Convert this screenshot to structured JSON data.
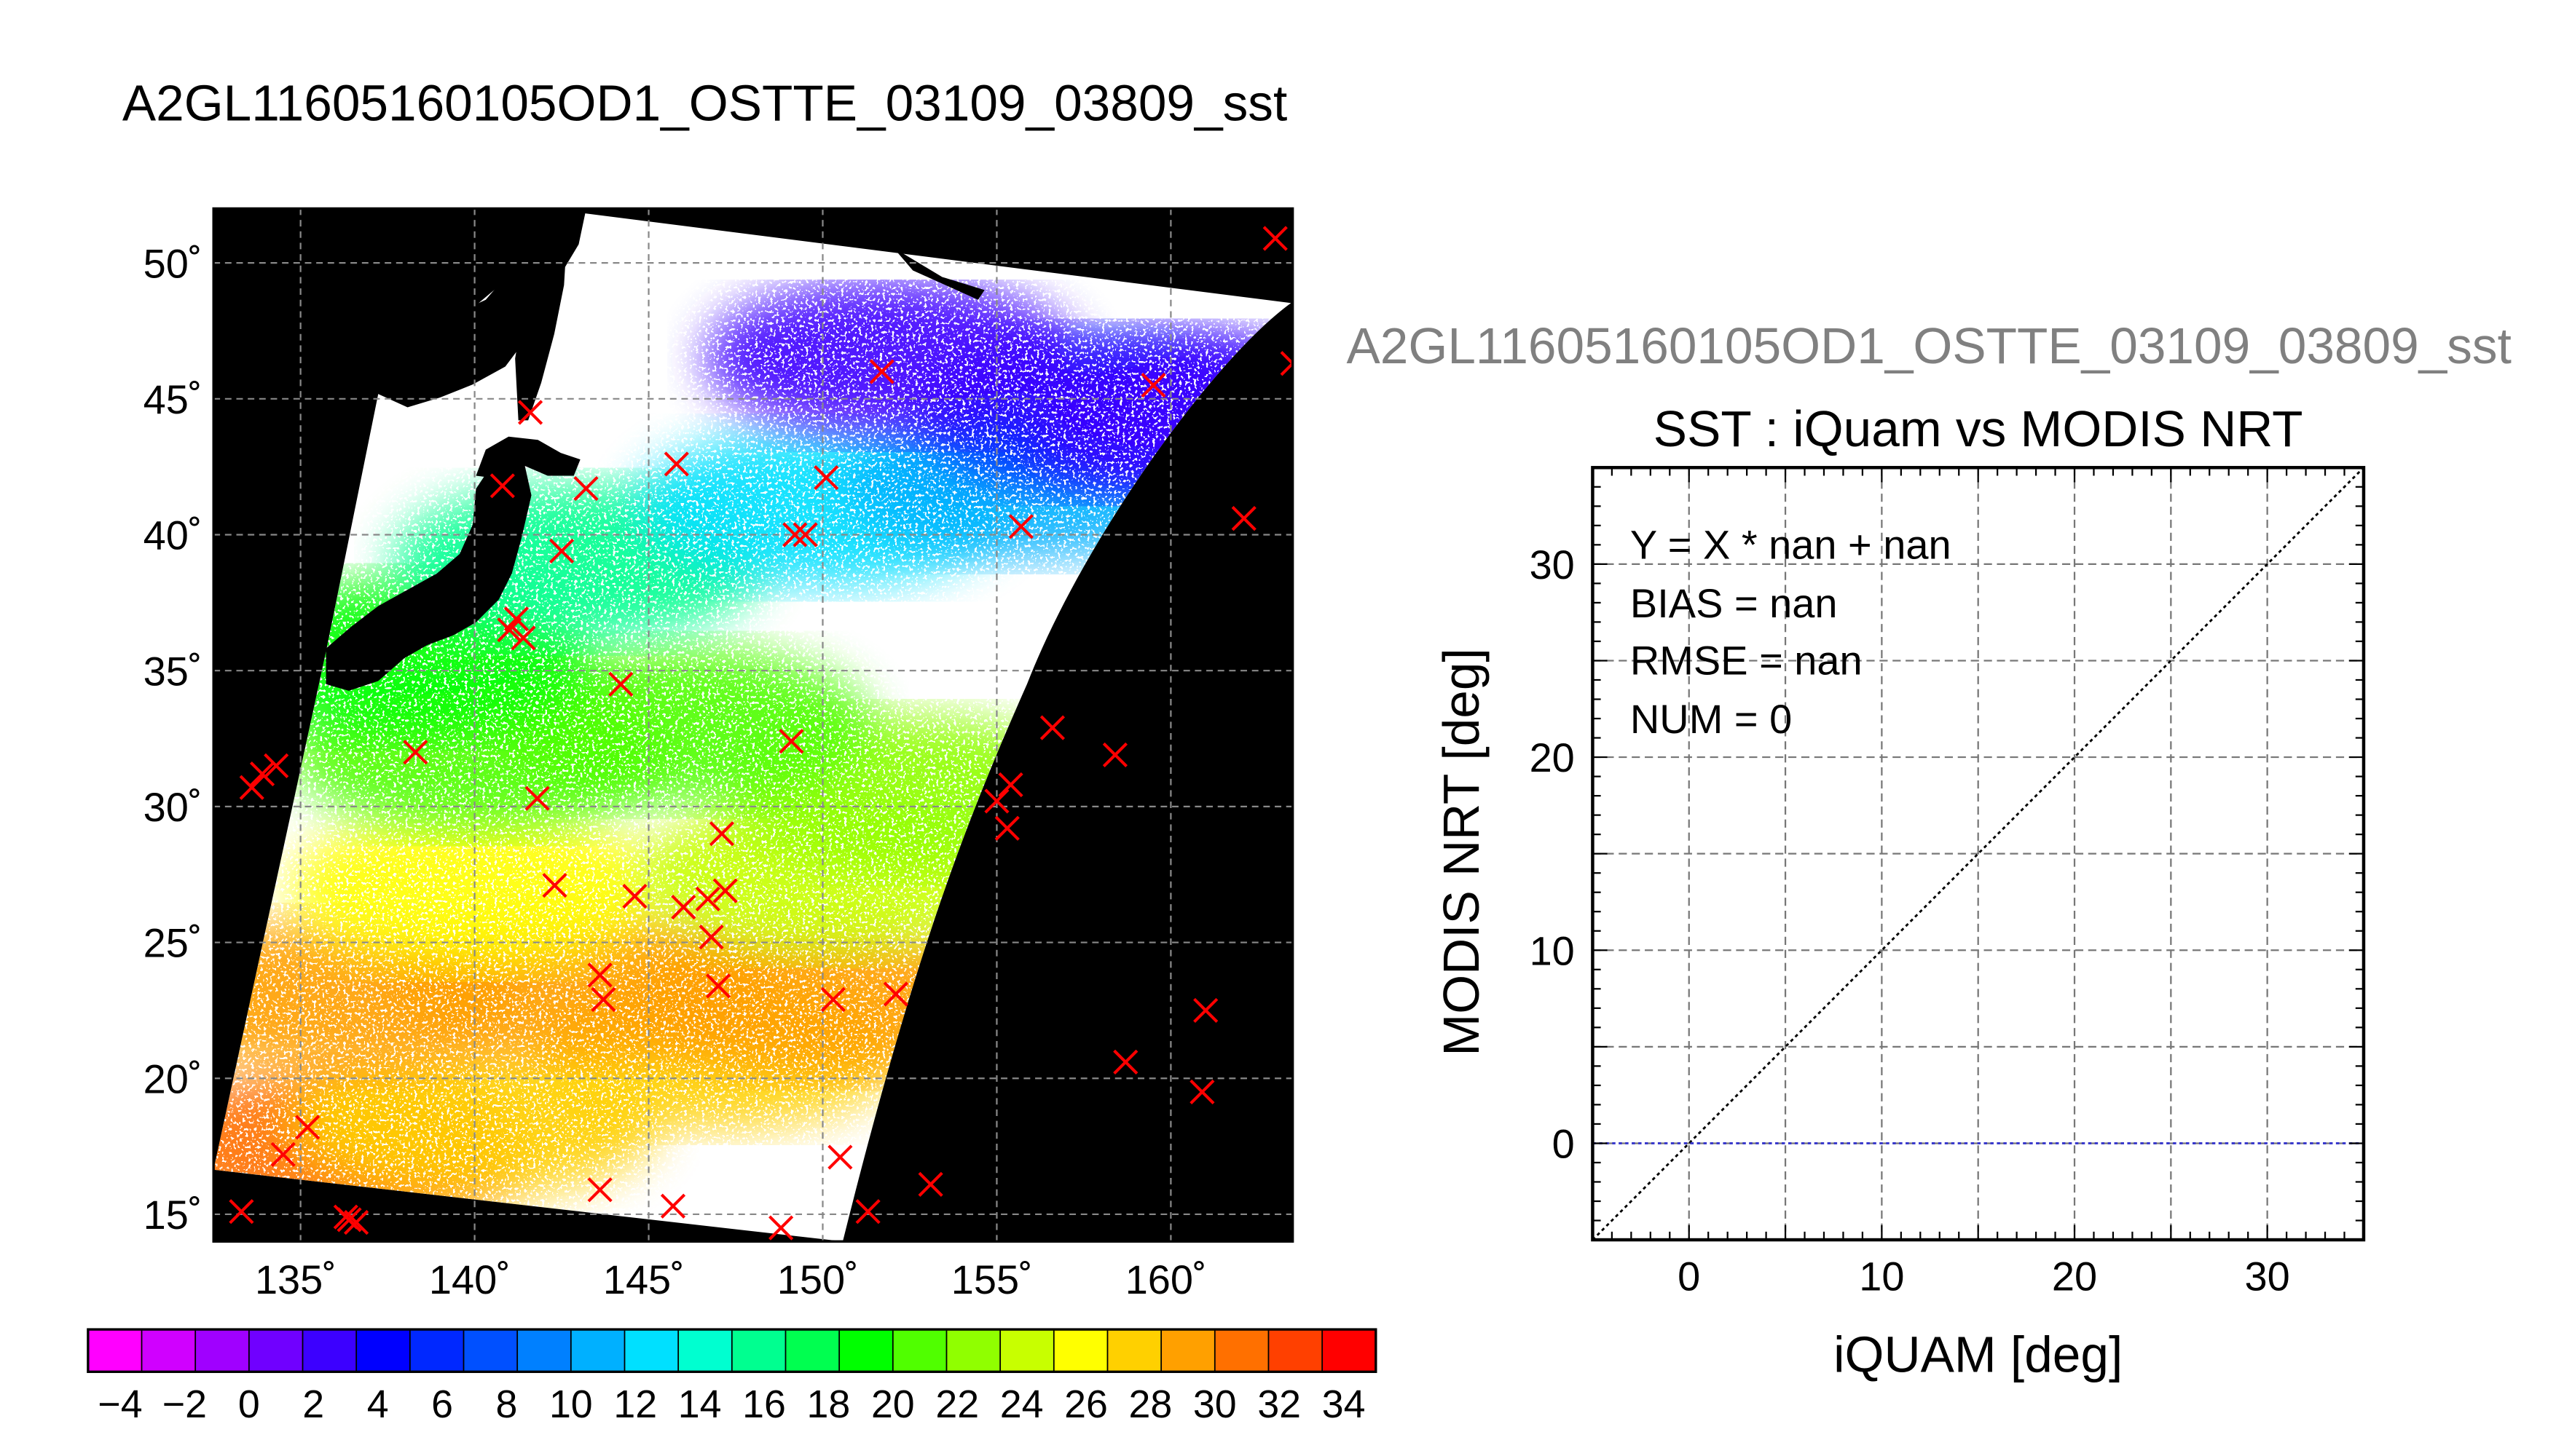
{
  "title": "A2GL11605160105OD1_OSTTE_03109_03809_sst",
  "scatter_title": "A2GL11605160105OD1_OSTTE_03109_03809_sst",
  "scatter_subtitle": "SST : iQuam vs MODIS NRT",
  "stats": {
    "fit": "Y = X * nan + nan",
    "bias": "BIAS = nan",
    "rmse": "RMSE = nan",
    "num": "NUM = 0"
  },
  "colors": {
    "marker": "#ff0000",
    "zero_line": "#3333cc",
    "land": "#000000",
    "ocean_no_data": "#ffffff"
  },
  "chart_data": [
    {
      "type": "heatmap",
      "title": "A2GL11605160105OD1_OSTTE_03109_03809_sst",
      "xlim": [
        132.5,
        163.5
      ],
      "ylim": [
        14,
        52
      ],
      "x_ticks": [
        135,
        140,
        145,
        150,
        155,
        160
      ],
      "y_ticks": [
        15,
        20,
        25,
        30,
        35,
        40,
        45,
        50
      ],
      "x_tick_labels": [
        "135˚",
        "140˚",
        "145˚",
        "150˚",
        "155˚",
        "160˚"
      ],
      "y_tick_labels": [
        "15˚",
        "20˚",
        "25˚",
        "30˚",
        "35˚",
        "40˚",
        "45˚",
        "50˚"
      ],
      "grid": true,
      "colorbar": {
        "min": -5,
        "max": 35,
        "labels": [
          "−4",
          "−2",
          "0",
          "2",
          "4",
          "6",
          "8",
          "10",
          "12",
          "14",
          "16",
          "18",
          "20",
          "22",
          "24",
          "26",
          "28",
          "30",
          "32",
          "34"
        ],
        "colors": [
          "#ff00ff",
          "#d000ff",
          "#a000ff",
          "#7000ff",
          "#3c00ff",
          "#0000ff",
          "#0028ff",
          "#0050ff",
          "#0080ff",
          "#00b0ff",
          "#00e0ff",
          "#00ffd0",
          "#00ff90",
          "#00ff50",
          "#00ff00",
          "#50ff00",
          "#90ff00",
          "#c8ff00",
          "#ffff00",
          "#ffd000",
          "#ffa000",
          "#ff7000",
          "#ff4000",
          "#ff0000"
        ]
      },
      "sst_regions": [
        {
          "lon": 136,
          "lat": 17.5,
          "value": 30
        },
        {
          "lon": 140,
          "lat": 18.5,
          "value": 28
        },
        {
          "lon": 147,
          "lat": 21,
          "value": 28
        },
        {
          "lon": 136,
          "lat": 23,
          "value": 29
        },
        {
          "lon": 143,
          "lat": 23.5,
          "value": 28.5
        },
        {
          "lon": 150,
          "lat": 23,
          "value": 29
        },
        {
          "lon": 140,
          "lat": 27,
          "value": 25
        },
        {
          "lon": 150,
          "lat": 27.5,
          "value": 24.5
        },
        {
          "lon": 152.5,
          "lat": 30.5,
          "value": 22
        },
        {
          "lon": 140,
          "lat": 32,
          "value": 21
        },
        {
          "lon": 146,
          "lat": 33,
          "value": 20.5
        },
        {
          "lon": 138,
          "lat": 35.5,
          "value": 18.5
        },
        {
          "lon": 143,
          "lat": 39,
          "value": 16
        },
        {
          "lon": 150,
          "lat": 41,
          "value": 13
        },
        {
          "lon": 156,
          "lat": 42,
          "value": 11
        },
        {
          "lon": 158,
          "lat": 44.5,
          "value": 5
        },
        {
          "lon": 161,
          "lat": 44.5,
          "value": 3
        },
        {
          "lon": 152,
          "lat": 46.5,
          "value": 2
        }
      ],
      "markers": [
        [
          133.3,
          15.1
        ],
        [
          133.6,
          30.7
        ],
        [
          133.9,
          31.2
        ],
        [
          134.3,
          31.5
        ],
        [
          134.5,
          17.2
        ],
        [
          135.2,
          18.2
        ],
        [
          136.3,
          14.9
        ],
        [
          136.6,
          14.7
        ],
        [
          136.4,
          14.8
        ],
        [
          138.3,
          32.0
        ],
        [
          140.8,
          41.8
        ],
        [
          141.0,
          36.5
        ],
        [
          141.2,
          36.9
        ],
        [
          141.4,
          36.2
        ],
        [
          141.6,
          44.5
        ],
        [
          141.8,
          30.3
        ],
        [
          142.3,
          27.1
        ],
        [
          142.5,
          39.4
        ],
        [
          143.2,
          41.7
        ],
        [
          143.6,
          23.8
        ],
        [
          143.7,
          22.9
        ],
        [
          143.6,
          15.9
        ],
        [
          144.2,
          34.5
        ],
        [
          144.6,
          26.7
        ],
        [
          145.7,
          15.3
        ],
        [
          145.8,
          42.6
        ],
        [
          146.0,
          26.3
        ],
        [
          146.7,
          26.6
        ],
        [
          146.8,
          25.2
        ],
        [
          147.0,
          23.4
        ],
        [
          147.1,
          29.0
        ],
        [
          147.2,
          26.9
        ],
        [
          148.8,
          14.5
        ],
        [
          149.1,
          32.4
        ],
        [
          149.2,
          40.0
        ],
        [
          149.5,
          40.0
        ],
        [
          150.1,
          42.1
        ],
        [
          150.3,
          22.9
        ],
        [
          150.5,
          17.1
        ],
        [
          151.3,
          15.1
        ],
        [
          151.7,
          46.0
        ],
        [
          152.1,
          23.1
        ],
        [
          153.1,
          16.1
        ],
        [
          155.0,
          30.2
        ],
        [
          155.3,
          29.2
        ],
        [
          155.4,
          30.8
        ],
        [
          155.7,
          40.3
        ],
        [
          156.6,
          32.9
        ],
        [
          158.4,
          31.9
        ],
        [
          158.7,
          20.6
        ],
        [
          159.5,
          45.5
        ],
        [
          160.9,
          19.5
        ],
        [
          161.0,
          22.5
        ],
        [
          162.1,
          40.6
        ],
        [
          163.0,
          50.9
        ],
        [
          163.5,
          46.3
        ]
      ]
    },
    {
      "type": "scatter",
      "title": "SST : iQuam vs MODIS NRT",
      "xlabel": "iQUAM [deg]",
      "ylabel": "MODIS NRT [deg]",
      "xlim": [
        -5,
        35
      ],
      "ylim": [
        -5,
        35
      ],
      "x_ticks": [
        0,
        10,
        20,
        30
      ],
      "y_ticks": [
        0,
        10,
        20,
        30
      ],
      "grid": true,
      "points": [],
      "reference_lines": [
        {
          "name": "1:1",
          "x": [
            -5,
            35
          ],
          "y": [
            -5,
            35
          ],
          "style": "dotted",
          "color": "#000000"
        },
        {
          "name": "y=0",
          "x": [
            -5,
            35
          ],
          "y": [
            0,
            0
          ],
          "style": "dotted",
          "color": "#3333cc"
        }
      ]
    }
  ]
}
